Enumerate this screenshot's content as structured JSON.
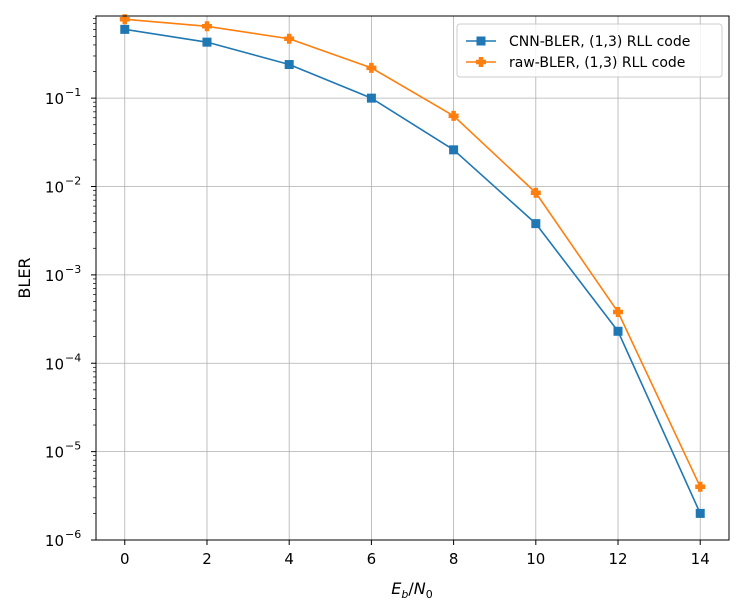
{
  "chart_data": {
    "type": "line",
    "xlabel": "E_b/N_0",
    "ylabel": "BLER",
    "yscale": "log",
    "grid": true,
    "legend_position": "top-right",
    "xlim": [
      -0.7,
      14.7
    ],
    "ylim": [
      1e-06,
      0.85
    ],
    "x_ticks": [
      0,
      2,
      4,
      6,
      8,
      10,
      12,
      14
    ],
    "y_ticks": [
      {
        "value": 0.1,
        "mantissa": "10",
        "exponent": "−1"
      },
      {
        "value": 0.01,
        "mantissa": "10",
        "exponent": "−2"
      },
      {
        "value": 0.001,
        "mantissa": "10",
        "exponent": "−3"
      },
      {
        "value": 0.0001,
        "mantissa": "10",
        "exponent": "−4"
      },
      {
        "value": 1e-05,
        "mantissa": "10",
        "exponent": "−5"
      },
      {
        "value": 1e-06,
        "mantissa": "10",
        "exponent": "−6"
      }
    ],
    "x": [
      0,
      2,
      4,
      6,
      8,
      10,
      12,
      14
    ],
    "series": [
      {
        "name": "CNN-BLER, (1,3) RLL code",
        "color": "#1f77b4",
        "marker": "square",
        "values": [
          0.6,
          0.43,
          0.24,
          0.1,
          0.026,
          0.0038,
          0.00023,
          2e-06
        ]
      },
      {
        "name": "raw-BLER, (1,3) RLL code",
        "color": "#ff7f0e",
        "marker": "plus-filled",
        "values": [
          0.78,
          0.65,
          0.47,
          0.22,
          0.063,
          0.0085,
          0.00038,
          4e-06
        ]
      }
    ]
  }
}
